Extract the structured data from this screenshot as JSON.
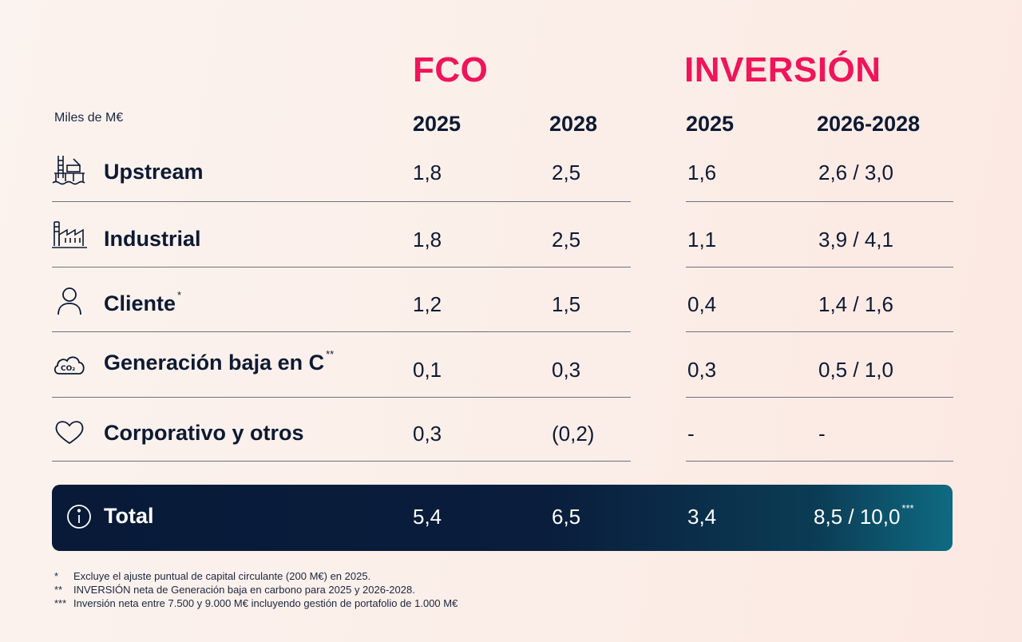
{
  "headers": {
    "units": "Miles de M€",
    "fco_title": "FCO",
    "inversion_title": "INVERSIÓN",
    "fco_year_1": "2025",
    "fco_year_2": "2028",
    "inv_year_1": "2025",
    "inv_year_2": "2026-2028"
  },
  "rows": [
    {
      "icon": "offshore-platform-icon",
      "label": "Upstream",
      "mark": "",
      "fco_2025": "1,8",
      "fco_2028": "2,5",
      "inv_2025": "1,6",
      "inv_2026_2028": "2,6 / 3,0"
    },
    {
      "icon": "factory-icon",
      "label": "Industrial",
      "mark": "",
      "fco_2025": "1,8",
      "fco_2028": "2,5",
      "inv_2025": "1,1",
      "inv_2026_2028": "3,9 / 4,1"
    },
    {
      "icon": "person-icon",
      "label": "Cliente",
      "mark": "*",
      "fco_2025": "1,2",
      "fco_2028": "1,5",
      "inv_2025": "0,4",
      "inv_2026_2028": "1,4 / 1,6"
    },
    {
      "icon": "co2-cloud-icon",
      "label": "Generación baja en C",
      "mark": "**",
      "fco_2025": "0,1",
      "fco_2028": "0,3",
      "inv_2025": "0,3",
      "inv_2026_2028": "0,5 / 1,0"
    },
    {
      "icon": "heart-icon",
      "label": "Corporativo y otros",
      "mark": "",
      "fco_2025": "0,3",
      "fco_2028": "(0,2)",
      "inv_2025": "-",
      "inv_2026_2028": "-"
    }
  ],
  "total": {
    "icon": "info-icon",
    "label": "Total",
    "fco_2025": "5,4",
    "fco_2028": "6,5",
    "inv_2025": "3,4",
    "inv_2026_2028": "8,5 / 10,0",
    "mark": "***"
  },
  "footnotes": [
    {
      "mark": "*",
      "text": "Excluye el ajuste puntual de capital circulante (200 M€) en 2025."
    },
    {
      "mark": "**",
      "text": "INVERSIÓN neta de Generación baja en carbono para 2025 y 2026-2028."
    },
    {
      "mark": "***",
      "text": "Inversión neta entre 7.500 y 9.000 M€ incluyendo gestión de portafolio de 1.000 M€"
    }
  ],
  "colors": {
    "accent": "#f0145a",
    "text": "#0d1a33",
    "total_bar_start": "#081a38",
    "total_bar_end": "#0e6b82",
    "divider": "#6b7280"
  }
}
